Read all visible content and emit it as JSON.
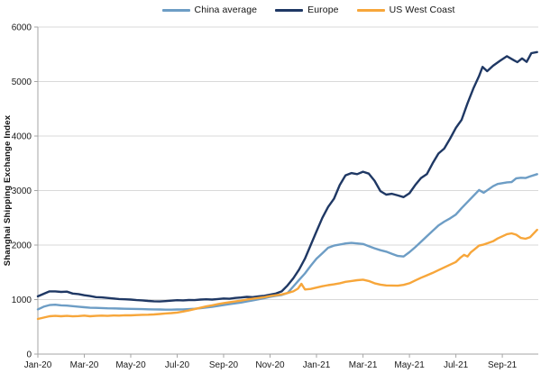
{
  "chart_data": {
    "type": "line",
    "title": "",
    "xlabel": "",
    "ylabel": "Shanghai Shipping Exchange Index",
    "ylim": [
      0,
      6000
    ],
    "yticks": [
      0,
      1000,
      2000,
      3000,
      4000,
      5000,
      6000
    ],
    "xticks": [
      "Jan-20",
      "Mar-20",
      "May-20",
      "Jul-20",
      "Sep-20",
      "Nov-20",
      "Jan-21",
      "Mar-21",
      "May-21",
      "Jul-21",
      "Sep-21"
    ],
    "x_unit": "months-since-Jan-2020",
    "xlim_months": [
      0,
      21.55
    ],
    "grid": "horizontal",
    "legend_position": "top-center",
    "axis_color": "#a6a6a6",
    "grid_color": "#d9d9d9",
    "text_color": "#1a1a1a",
    "series": [
      {
        "name": "China average",
        "color": "#6d9dc5",
        "points": [
          [
            0,
            820
          ],
          [
            0.25,
            870
          ],
          [
            0.5,
            900
          ],
          [
            0.75,
            905
          ],
          [
            1,
            895
          ],
          [
            1.25,
            890
          ],
          [
            1.5,
            880
          ],
          [
            1.75,
            870
          ],
          [
            2,
            860
          ],
          [
            2.25,
            850
          ],
          [
            2.5,
            848
          ],
          [
            2.75,
            845
          ],
          [
            3,
            840
          ],
          [
            3.25,
            838
          ],
          [
            3.5,
            835
          ],
          [
            3.75,
            832
          ],
          [
            4,
            830
          ],
          [
            4.25,
            828
          ],
          [
            4.5,
            825
          ],
          [
            4.75,
            822
          ],
          [
            5,
            820
          ],
          [
            5.25,
            818
          ],
          [
            5.5,
            815
          ],
          [
            5.75,
            815
          ],
          [
            6,
            818
          ],
          [
            6.25,
            820
          ],
          [
            6.5,
            825
          ],
          [
            6.75,
            832
          ],
          [
            7,
            842
          ],
          [
            7.25,
            855
          ],
          [
            7.5,
            868
          ],
          [
            7.75,
            882
          ],
          [
            8,
            900
          ],
          [
            8.25,
            915
          ],
          [
            8.5,
            930
          ],
          [
            8.75,
            945
          ],
          [
            9,
            965
          ],
          [
            9.25,
            985
          ],
          [
            9.5,
            1005
          ],
          [
            9.75,
            1025
          ],
          [
            10,
            1050
          ],
          [
            10.25,
            1070
          ],
          [
            10.5,
            1085
          ],
          [
            10.75,
            1120
          ],
          [
            11,
            1240
          ],
          [
            11.25,
            1360
          ],
          [
            11.5,
            1480
          ],
          [
            11.75,
            1620
          ],
          [
            12,
            1750
          ],
          [
            12.25,
            1850
          ],
          [
            12.5,
            1950
          ],
          [
            12.75,
            1990
          ],
          [
            13,
            2010
          ],
          [
            13.25,
            2030
          ],
          [
            13.5,
            2040
          ],
          [
            13.75,
            2030
          ],
          [
            14,
            2020
          ],
          [
            14.25,
            1980
          ],
          [
            14.5,
            1940
          ],
          [
            14.75,
            1905
          ],
          [
            15,
            1880
          ],
          [
            15.25,
            1840
          ],
          [
            15.5,
            1800
          ],
          [
            15.75,
            1790
          ],
          [
            16,
            1870
          ],
          [
            16.25,
            1960
          ],
          [
            16.5,
            2060
          ],
          [
            16.75,
            2160
          ],
          [
            17,
            2260
          ],
          [
            17.25,
            2360
          ],
          [
            17.5,
            2430
          ],
          [
            17.75,
            2490
          ],
          [
            18,
            2560
          ],
          [
            18.25,
            2680
          ],
          [
            18.5,
            2790
          ],
          [
            18.75,
            2900
          ],
          [
            19,
            3010
          ],
          [
            19.2,
            2960
          ],
          [
            19.4,
            3020
          ],
          [
            19.6,
            3080
          ],
          [
            19.8,
            3120
          ],
          [
            20,
            3135
          ],
          [
            20.2,
            3150
          ],
          [
            20.4,
            3155
          ],
          [
            20.6,
            3225
          ],
          [
            20.8,
            3235
          ],
          [
            21,
            3230
          ],
          [
            21.2,
            3260
          ],
          [
            21.5,
            3300
          ]
        ]
      },
      {
        "name": "Europe",
        "color": "#1f3864",
        "points": [
          [
            0,
            1060
          ],
          [
            0.25,
            1105
          ],
          [
            0.5,
            1150
          ],
          [
            0.75,
            1150
          ],
          [
            1,
            1140
          ],
          [
            1.25,
            1145
          ],
          [
            1.5,
            1110
          ],
          [
            1.75,
            1100
          ],
          [
            2,
            1080
          ],
          [
            2.25,
            1065
          ],
          [
            2.5,
            1045
          ],
          [
            2.75,
            1040
          ],
          [
            3,
            1030
          ],
          [
            3.25,
            1020
          ],
          [
            3.5,
            1010
          ],
          [
            3.75,
            1005
          ],
          [
            4,
            1000
          ],
          [
            4.25,
            990
          ],
          [
            4.5,
            985
          ],
          [
            4.75,
            975
          ],
          [
            5,
            968
          ],
          [
            5.25,
            965
          ],
          [
            5.5,
            972
          ],
          [
            5.75,
            980
          ],
          [
            6,
            988
          ],
          [
            6.25,
            985
          ],
          [
            6.5,
            992
          ],
          [
            6.75,
            990
          ],
          [
            7,
            1000
          ],
          [
            7.25,
            1005
          ],
          [
            7.5,
            1000
          ],
          [
            7.75,
            1010
          ],
          [
            8,
            1020
          ],
          [
            8.25,
            1015
          ],
          [
            8.5,
            1030
          ],
          [
            8.75,
            1038
          ],
          [
            9,
            1050
          ],
          [
            9.25,
            1045
          ],
          [
            9.5,
            1060
          ],
          [
            9.75,
            1070
          ],
          [
            10,
            1090
          ],
          [
            10.25,
            1110
          ],
          [
            10.5,
            1150
          ],
          [
            10.75,
            1260
          ],
          [
            11,
            1390
          ],
          [
            11.25,
            1550
          ],
          [
            11.5,
            1750
          ],
          [
            11.75,
            2000
          ],
          [
            12,
            2250
          ],
          [
            12.25,
            2500
          ],
          [
            12.5,
            2700
          ],
          [
            12.75,
            2850
          ],
          [
            13,
            3100
          ],
          [
            13.25,
            3280
          ],
          [
            13.5,
            3320
          ],
          [
            13.75,
            3300
          ],
          [
            14,
            3345
          ],
          [
            14.25,
            3310
          ],
          [
            14.5,
            3180
          ],
          [
            14.75,
            2990
          ],
          [
            15,
            2925
          ],
          [
            15.25,
            2940
          ],
          [
            15.5,
            2910
          ],
          [
            15.75,
            2880
          ],
          [
            16,
            2950
          ],
          [
            16.25,
            3100
          ],
          [
            16.5,
            3230
          ],
          [
            16.75,
            3300
          ],
          [
            17,
            3500
          ],
          [
            17.25,
            3680
          ],
          [
            17.5,
            3770
          ],
          [
            17.75,
            3950
          ],
          [
            18,
            4150
          ],
          [
            18.25,
            4300
          ],
          [
            18.5,
            4600
          ],
          [
            18.75,
            4870
          ],
          [
            19,
            5100
          ],
          [
            19.15,
            5270
          ],
          [
            19.35,
            5190
          ],
          [
            19.6,
            5290
          ],
          [
            19.9,
            5380
          ],
          [
            20.2,
            5465
          ],
          [
            20.5,
            5390
          ],
          [
            20.65,
            5355
          ],
          [
            20.85,
            5425
          ],
          [
            21.05,
            5360
          ],
          [
            21.25,
            5520
          ],
          [
            21.5,
            5540
          ]
        ]
      },
      {
        "name": "US West Coast",
        "color": "#f7a63a",
        "points": [
          [
            0,
            645
          ],
          [
            0.25,
            670
          ],
          [
            0.5,
            695
          ],
          [
            0.75,
            700
          ],
          [
            1,
            695
          ],
          [
            1.25,
            700
          ],
          [
            1.5,
            692
          ],
          [
            1.75,
            698
          ],
          [
            2,
            705
          ],
          [
            2.25,
            695
          ],
          [
            2.5,
            700
          ],
          [
            2.75,
            705
          ],
          [
            3,
            700
          ],
          [
            3.25,
            708
          ],
          [
            3.5,
            705
          ],
          [
            3.75,
            712
          ],
          [
            4,
            710
          ],
          [
            4.25,
            715
          ],
          [
            4.5,
            720
          ],
          [
            4.75,
            722
          ],
          [
            5,
            728
          ],
          [
            5.25,
            735
          ],
          [
            5.5,
            745
          ],
          [
            5.75,
            752
          ],
          [
            6,
            762
          ],
          [
            6.25,
            780
          ],
          [
            6.5,
            800
          ],
          [
            6.75,
            825
          ],
          [
            7,
            850
          ],
          [
            7.25,
            875
          ],
          [
            7.5,
            895
          ],
          [
            7.75,
            915
          ],
          [
            8,
            935
          ],
          [
            8.25,
            950
          ],
          [
            8.5,
            965
          ],
          [
            8.75,
            980
          ],
          [
            9,
            1000
          ],
          [
            9.25,
            1015
          ],
          [
            9.5,
            1030
          ],
          [
            9.75,
            1045
          ],
          [
            10,
            1065
          ],
          [
            10.25,
            1080
          ],
          [
            10.5,
            1095
          ],
          [
            10.75,
            1120
          ],
          [
            11,
            1150
          ],
          [
            11.2,
            1200
          ],
          [
            11.35,
            1290
          ],
          [
            11.5,
            1185
          ],
          [
            11.75,
            1195
          ],
          [
            12,
            1220
          ],
          [
            12.25,
            1245
          ],
          [
            12.5,
            1265
          ],
          [
            12.75,
            1280
          ],
          [
            13,
            1300
          ],
          [
            13.25,
            1325
          ],
          [
            13.5,
            1340
          ],
          [
            13.75,
            1355
          ],
          [
            14,
            1365
          ],
          [
            14.25,
            1340
          ],
          [
            14.5,
            1300
          ],
          [
            14.75,
            1275
          ],
          [
            15,
            1260
          ],
          [
            15.25,
            1258
          ],
          [
            15.5,
            1255
          ],
          [
            15.75,
            1270
          ],
          [
            16,
            1300
          ],
          [
            16.25,
            1350
          ],
          [
            16.5,
            1400
          ],
          [
            16.75,
            1445
          ],
          [
            17,
            1490
          ],
          [
            17.25,
            1540
          ],
          [
            17.5,
            1590
          ],
          [
            17.75,
            1640
          ],
          [
            18,
            1690
          ],
          [
            18.2,
            1770
          ],
          [
            18.35,
            1820
          ],
          [
            18.5,
            1790
          ],
          [
            18.65,
            1870
          ],
          [
            18.8,
            1920
          ],
          [
            19,
            1990
          ],
          [
            19.2,
            2010
          ],
          [
            19.4,
            2040
          ],
          [
            19.6,
            2070
          ],
          [
            19.8,
            2120
          ],
          [
            20,
            2160
          ],
          [
            20.2,
            2200
          ],
          [
            20.4,
            2215
          ],
          [
            20.6,
            2190
          ],
          [
            20.8,
            2130
          ],
          [
            21,
            2115
          ],
          [
            21.2,
            2145
          ],
          [
            21.5,
            2280
          ]
        ]
      }
    ]
  }
}
